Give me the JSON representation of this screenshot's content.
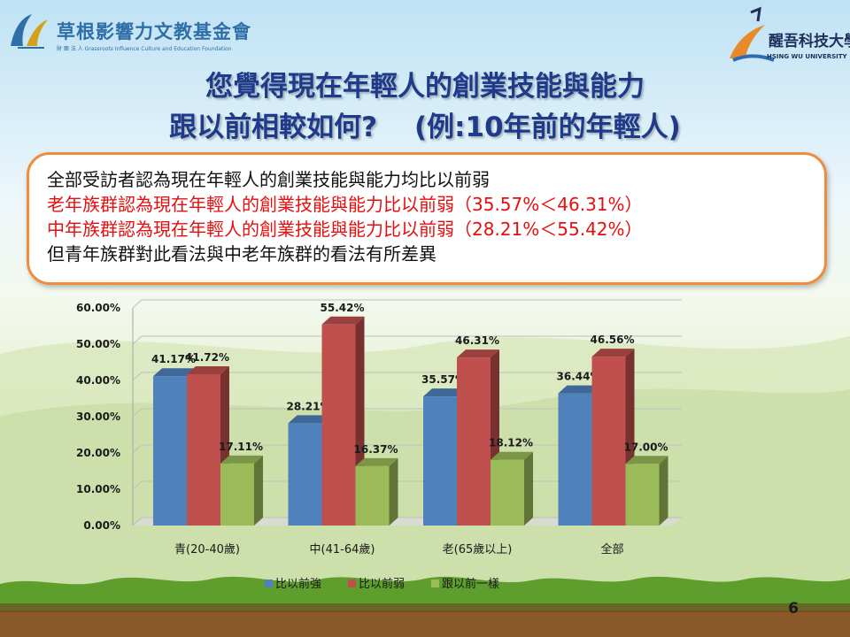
{
  "logos": {
    "left": {
      "name": "草根影響力文教基金會",
      "subtitle": "財 團 法 人 Grassroots Influence Culture and Education Foundation"
    },
    "right": {
      "name": "醒吾科技大學",
      "subtitle": "HSING WU UNIVERSITY"
    }
  },
  "title": {
    "line1": "您覺得現在年輕人的創業技能與能力",
    "line2": "跟以前相較如何?　 (例:10年前的年輕人)"
  },
  "summary": [
    {
      "text": "全部受訪者認為現在年輕人的創業技能與能力均比以前弱",
      "color": "black"
    },
    {
      "text": "老年族群認為現在年輕人的創業技能與能力比以前弱（35.57%＜46.31%）",
      "color": "red"
    },
    {
      "text": "中年族群認為現在年輕人的創業技能與能力比以前弱（28.21%＜55.42%）",
      "color": "red"
    },
    {
      "text": "但青年族群對此看法與中老年族群的看法有所差異",
      "color": "black"
    }
  ],
  "chart_data": {
    "type": "bar",
    "style": "3d-clustered",
    "categories": [
      "青(20-40歲)",
      "中(41-64歲)",
      "老(65歲以上)",
      "全部"
    ],
    "series": [
      {
        "name": "比以前強",
        "color": "#4f81bd",
        "values": [
          41.17,
          28.21,
          35.57,
          36.44
        ]
      },
      {
        "name": "比以前弱",
        "color": "#c0504d",
        "values": [
          41.72,
          55.42,
          46.31,
          46.56
        ]
      },
      {
        "name": "跟以前一樣",
        "color": "#9bbb59",
        "values": [
          17.11,
          16.37,
          18.12,
          17.0
        ]
      }
    ],
    "value_labels": [
      [
        "41.17%",
        "28.21%",
        "35.57%",
        "36.44%"
      ],
      [
        "41.72%",
        "55.42%",
        "46.31%",
        "46.56%"
      ],
      [
        "17.11%",
        "16.37%",
        "18.12%",
        "17.00%"
      ]
    ],
    "y_ticks": [
      "0.00%",
      "10.00%",
      "20.00%",
      "30.00%",
      "40.00%",
      "50.00%",
      "60.00%"
    ],
    "ylim": [
      0,
      60
    ],
    "grid": true,
    "legend_position": "bottom"
  },
  "page_number": "6"
}
